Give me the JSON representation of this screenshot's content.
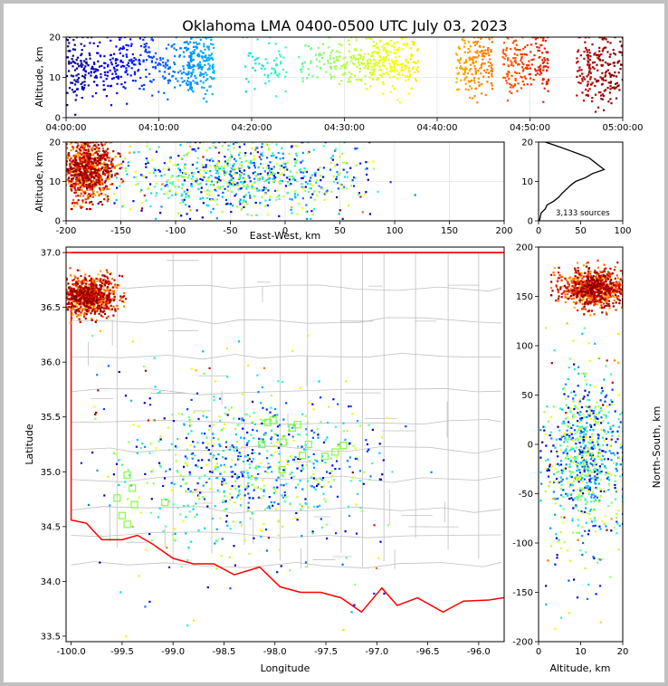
{
  "title": "Oklahoma LMA 0400-0500 UTC July 03, 2023",
  "colors": {
    "time_scale": [
      "#00008b",
      "#0000ff",
      "#0080ff",
      "#00d0ff",
      "#40ffb0",
      "#b0ff40",
      "#ffff00",
      "#ffb000",
      "#ff5000",
      "#d00000",
      "#800000"
    ],
    "state_border": "#ff0000",
    "county_lines": "#c0c0c0",
    "station_marker": "#80ff40"
  },
  "chart_data": [
    {
      "id": "altitude-time",
      "type": "scatter",
      "ylabel": "Altitude, km",
      "xlim": [
        "04:00:00",
        "05:00:00"
      ],
      "ylim": [
        0,
        20
      ],
      "x_ticks": [
        "04:00:00",
        "04:10:00",
        "04:20:00",
        "04:30:00",
        "04:40:00",
        "04:50:00",
        "05:00:00"
      ],
      "y_ticks": [
        0,
        10,
        20
      ],
      "grid": true,
      "color_by": "time",
      "clusters_minutes": [
        {
          "t": [
            0,
            6
          ],
          "z": [
            2,
            19
          ],
          "n": 200
        },
        {
          "t": [
            6,
            14
          ],
          "z": [
            3,
            19
          ],
          "n": 190
        },
        {
          "t": [
            13,
            16
          ],
          "z": [
            4,
            19
          ],
          "n": 170
        },
        {
          "t": [
            19,
            24
          ],
          "z": [
            4,
            18
          ],
          "n": 60
        },
        {
          "t": [
            25,
            29
          ],
          "z": [
            7,
            17
          ],
          "n": 60
        },
        {
          "t": [
            29,
            33
          ],
          "z": [
            6,
            17
          ],
          "n": 110
        },
        {
          "t": [
            33,
            38
          ],
          "z": [
            5,
            19
          ],
          "n": 200
        },
        {
          "t": [
            42,
            46
          ],
          "z": [
            4,
            19
          ],
          "n": 180
        },
        {
          "t": [
            47,
            52
          ],
          "z": [
            4,
            19
          ],
          "n": 190
        },
        {
          "t": [
            55,
            60
          ],
          "z": [
            1,
            19
          ],
          "n": 200
        }
      ]
    },
    {
      "id": "altitude-ew",
      "type": "scatter",
      "xlabel": "East-West, km",
      "ylabel": "Altitude, km",
      "xlim": [
        -200,
        200
      ],
      "ylim": [
        0,
        20
      ],
      "x_ticks": [
        -200,
        -150,
        -100,
        -50,
        0,
        50,
        100,
        150,
        200
      ],
      "y_ticks": [
        0,
        10,
        20
      ],
      "grid": true
    },
    {
      "id": "altitude-histogram",
      "type": "line",
      "xlim": [
        0,
        100
      ],
      "ylim": [
        0,
        20
      ],
      "x_ticks": [
        0,
        50,
        100
      ],
      "y_ticks": [
        0,
        10,
        20
      ],
      "annotation": "3,133 sources",
      "counts_by_altitude": [
        [
          0,
          1
        ],
        [
          1,
          2
        ],
        [
          2,
          3
        ],
        [
          3,
          8
        ],
        [
          4,
          10
        ],
        [
          5,
          18
        ],
        [
          6,
          24
        ],
        [
          7,
          28
        ],
        [
          8,
          33
        ],
        [
          9,
          38
        ],
        [
          10,
          44
        ],
        [
          11,
          56
        ],
        [
          12,
          64
        ],
        [
          13,
          78
        ],
        [
          14,
          72
        ],
        [
          15,
          66
        ],
        [
          16,
          60
        ],
        [
          17,
          48
        ],
        [
          18,
          35
        ],
        [
          19,
          22
        ],
        [
          20,
          8
        ]
      ]
    },
    {
      "id": "plan-view",
      "type": "scatter",
      "xlabel": "Longitude",
      "ylabel": "Latitude",
      "xlim": [
        -100.05,
        -95.75
      ],
      "ylim": [
        33.45,
        37.05
      ],
      "x_ticks": [
        -100.0,
        -99.5,
        -99.0,
        -98.5,
        -98.0,
        -97.5,
        -97.0,
        -96.5,
        -96.0
      ],
      "y_ticks": [
        33.5,
        34.0,
        34.5,
        35.0,
        35.5,
        36.0,
        36.5,
        37.0
      ],
      "stations": [
        [
          -99.45,
          34.97
        ],
        [
          -99.4,
          34.85
        ],
        [
          -99.55,
          34.76
        ],
        [
          -99.38,
          34.7
        ],
        [
          -99.5,
          34.6
        ],
        [
          -99.45,
          34.52
        ],
        [
          -99.08,
          34.72
        ],
        [
          -98.02,
          35.47
        ],
        [
          -97.92,
          35.27
        ],
        [
          -97.83,
          35.4
        ],
        [
          -97.78,
          35.43
        ],
        [
          -97.73,
          35.15
        ],
        [
          -97.67,
          35.25
        ],
        [
          -97.51,
          35.14
        ],
        [
          -97.41,
          35.18
        ],
        [
          -97.33,
          35.24
        ],
        [
          -97.93,
          35.02
        ],
        [
          -98.13,
          35.25
        ],
        [
          -98.07,
          35.45
        ]
      ]
    },
    {
      "id": "altitude-ns",
      "type": "scatter",
      "xlabel": "Altitude, km",
      "ylabel": "North-South, km",
      "xlim": [
        0,
        20
      ],
      "ylim": [
        -200,
        200
      ],
      "x_ticks": [
        0,
        10,
        20
      ],
      "y_ticks": [
        -200,
        -150,
        -100,
        -50,
        0,
        50,
        100,
        150,
        200
      ]
    }
  ]
}
